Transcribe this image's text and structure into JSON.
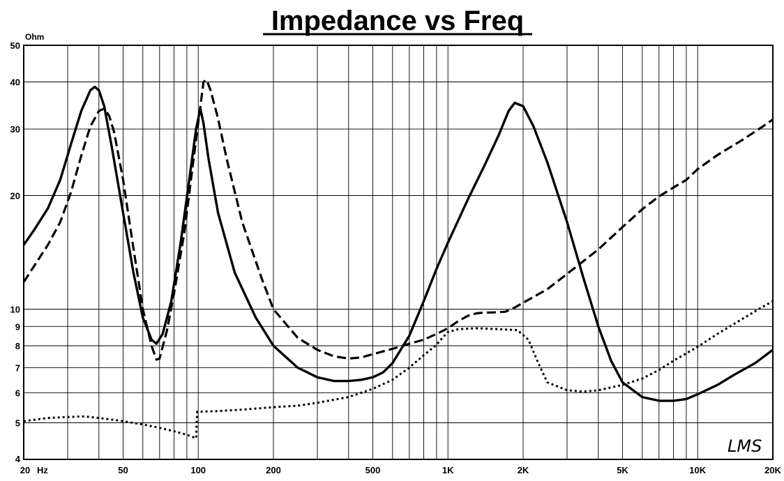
{
  "chart_data": {
    "type": "line",
    "title": "Impedance vs Freq",
    "ylabel": "Ohm",
    "xlabel": "Hz",
    "xscale": "log",
    "yscale": "log",
    "xlim": [
      20,
      20000
    ],
    "ylim": [
      4,
      50
    ],
    "grid": true,
    "watermark": "LMS",
    "x_tick_labels": [
      {
        "value": 20,
        "label": "20"
      },
      {
        "value": 50,
        "label": "50"
      },
      {
        "value": 100,
        "label": "100"
      },
      {
        "value": 200,
        "label": "200"
      },
      {
        "value": 500,
        "label": "500"
      },
      {
        "value": 1000,
        "label": "1K"
      },
      {
        "value": 2000,
        "label": "2K"
      },
      {
        "value": 5000,
        "label": "5K"
      },
      {
        "value": 10000,
        "label": "10K"
      },
      {
        "value": 20000,
        "label": "20K"
      }
    ],
    "y_tick_labels": [
      {
        "value": 4,
        "label": "4"
      },
      {
        "value": 5,
        "label": "5"
      },
      {
        "value": 6,
        "label": "6"
      },
      {
        "value": 7,
        "label": "7"
      },
      {
        "value": 8,
        "label": "8"
      },
      {
        "value": 9,
        "label": "9"
      },
      {
        "value": 10,
        "label": "10"
      },
      {
        "value": 20,
        "label": "20"
      },
      {
        "value": 30,
        "label": "30"
      },
      {
        "value": 40,
        "label": "40"
      },
      {
        "value": 50,
        "label": "50"
      }
    ],
    "series": [
      {
        "style": "solid",
        "points": [
          [
            20,
            14.8
          ],
          [
            22,
            16.2
          ],
          [
            25,
            18.5
          ],
          [
            28,
            22.0
          ],
          [
            31,
            27.5
          ],
          [
            34,
            33.5
          ],
          [
            37,
            38.0
          ],
          [
            38.5,
            38.8
          ],
          [
            40,
            38.0
          ],
          [
            42,
            34.5
          ],
          [
            45,
            27.0
          ],
          [
            50,
            18.0
          ],
          [
            55,
            12.5
          ],
          [
            60,
            9.5
          ],
          [
            65,
            8.3
          ],
          [
            68,
            8.1
          ],
          [
            72,
            8.6
          ],
          [
            78,
            10.5
          ],
          [
            85,
            15.0
          ],
          [
            92,
            22.0
          ],
          [
            98,
            30.0
          ],
          [
            102,
            34.0
          ],
          [
            105,
            31.0
          ],
          [
            110,
            25.0
          ],
          [
            120,
            18.0
          ],
          [
            140,
            12.5
          ],
          [
            170,
            9.5
          ],
          [
            200,
            8.0
          ],
          [
            250,
            7.0
          ],
          [
            300,
            6.6
          ],
          [
            350,
            6.45
          ],
          [
            400,
            6.45
          ],
          [
            450,
            6.5
          ],
          [
            500,
            6.6
          ],
          [
            550,
            6.8
          ],
          [
            600,
            7.2
          ],
          [
            700,
            8.5
          ],
          [
            800,
            10.5
          ],
          [
            900,
            12.8
          ],
          [
            1000,
            15.0
          ],
          [
            1200,
            19.5
          ],
          [
            1400,
            24.0
          ],
          [
            1600,
            29.0
          ],
          [
            1750,
            33.5
          ],
          [
            1850,
            35.2
          ],
          [
            2000,
            34.5
          ],
          [
            2200,
            30.5
          ],
          [
            2500,
            24.5
          ],
          [
            3000,
            17.0
          ],
          [
            3500,
            12.0
          ],
          [
            4000,
            9.0
          ],
          [
            4500,
            7.3
          ],
          [
            5000,
            6.4
          ],
          [
            6000,
            5.85
          ],
          [
            7000,
            5.72
          ],
          [
            8000,
            5.72
          ],
          [
            9000,
            5.78
          ],
          [
            10000,
            5.95
          ],
          [
            12000,
            6.3
          ],
          [
            14000,
            6.7
          ],
          [
            17000,
            7.2
          ],
          [
            20000,
            7.8
          ]
        ]
      },
      {
        "style": "dashed",
        "points": [
          [
            20,
            11.8
          ],
          [
            22,
            13.0
          ],
          [
            25,
            14.8
          ],
          [
            28,
            17.0
          ],
          [
            31,
            20.5
          ],
          [
            34,
            25.5
          ],
          [
            37,
            30.5
          ],
          [
            40,
            33.5
          ],
          [
            42,
            34.0
          ],
          [
            44,
            32.5
          ],
          [
            46,
            29.5
          ],
          [
            50,
            22.0
          ],
          [
            55,
            14.5
          ],
          [
            60,
            10.0
          ],
          [
            65,
            8.0
          ],
          [
            68,
            7.35
          ],
          [
            70,
            7.4
          ],
          [
            75,
            8.8
          ],
          [
            80,
            11.0
          ],
          [
            88,
            16.0
          ],
          [
            95,
            24.0
          ],
          [
            102,
            34.5
          ],
          [
            105,
            40.0
          ],
          [
            108,
            40.5
          ],
          [
            112,
            38.0
          ],
          [
            120,
            32.0
          ],
          [
            130,
            25.0
          ],
          [
            150,
            17.0
          ],
          [
            180,
            12.0
          ],
          [
            200,
            10.0
          ],
          [
            250,
            8.4
          ],
          [
            300,
            7.8
          ],
          [
            350,
            7.5
          ],
          [
            400,
            7.4
          ],
          [
            450,
            7.45
          ],
          [
            500,
            7.6
          ],
          [
            600,
            7.85
          ],
          [
            700,
            8.1
          ],
          [
            800,
            8.3
          ],
          [
            900,
            8.6
          ],
          [
            1000,
            8.9
          ],
          [
            1100,
            9.3
          ],
          [
            1200,
            9.6
          ],
          [
            1300,
            9.75
          ],
          [
            1400,
            9.8
          ],
          [
            1500,
            9.8
          ],
          [
            1700,
            9.85
          ],
          [
            1850,
            10.1
          ],
          [
            2000,
            10.4
          ],
          [
            2500,
            11.3
          ],
          [
            3000,
            12.4
          ],
          [
            4000,
            14.4
          ],
          [
            5000,
            16.5
          ],
          [
            6000,
            18.4
          ],
          [
            7000,
            19.9
          ],
          [
            8000,
            21.0
          ],
          [
            9000,
            22.0
          ],
          [
            10000,
            23.5
          ],
          [
            12000,
            25.6
          ],
          [
            15000,
            28.0
          ],
          [
            18000,
            30.3
          ],
          [
            20000,
            31.8
          ]
        ]
      },
      {
        "style": "dotted",
        "points": [
          [
            20,
            5.05
          ],
          [
            25,
            5.15
          ],
          [
            30,
            5.18
          ],
          [
            35,
            5.2
          ],
          [
            40,
            5.15
          ],
          [
            45,
            5.1
          ],
          [
            50,
            5.05
          ],
          [
            60,
            4.95
          ],
          [
            70,
            4.85
          ],
          [
            80,
            4.75
          ],
          [
            90,
            4.65
          ],
          [
            98,
            4.55
          ],
          [
            99,
            5.35
          ],
          [
            120,
            5.37
          ],
          [
            150,
            5.42
          ],
          [
            200,
            5.5
          ],
          [
            250,
            5.55
          ],
          [
            300,
            5.65
          ],
          [
            400,
            5.85
          ],
          [
            500,
            6.15
          ],
          [
            600,
            6.5
          ],
          [
            700,
            7.0
          ],
          [
            800,
            7.55
          ],
          [
            900,
            8.05
          ],
          [
            950,
            8.4
          ],
          [
            1000,
            8.7
          ],
          [
            1100,
            8.85
          ],
          [
            1300,
            8.9
          ],
          [
            1600,
            8.85
          ],
          [
            1900,
            8.8
          ],
          [
            2100,
            8.3
          ],
          [
            2300,
            7.2
          ],
          [
            2500,
            6.4
          ],
          [
            3000,
            6.1
          ],
          [
            3500,
            6.05
          ],
          [
            4000,
            6.1
          ],
          [
            5000,
            6.3
          ],
          [
            6000,
            6.55
          ],
          [
            7000,
            6.9
          ],
          [
            8000,
            7.3
          ],
          [
            10000,
            7.95
          ],
          [
            12000,
            8.6
          ],
          [
            15000,
            9.4
          ],
          [
            18000,
            10.1
          ],
          [
            20000,
            10.5
          ]
        ]
      }
    ]
  }
}
